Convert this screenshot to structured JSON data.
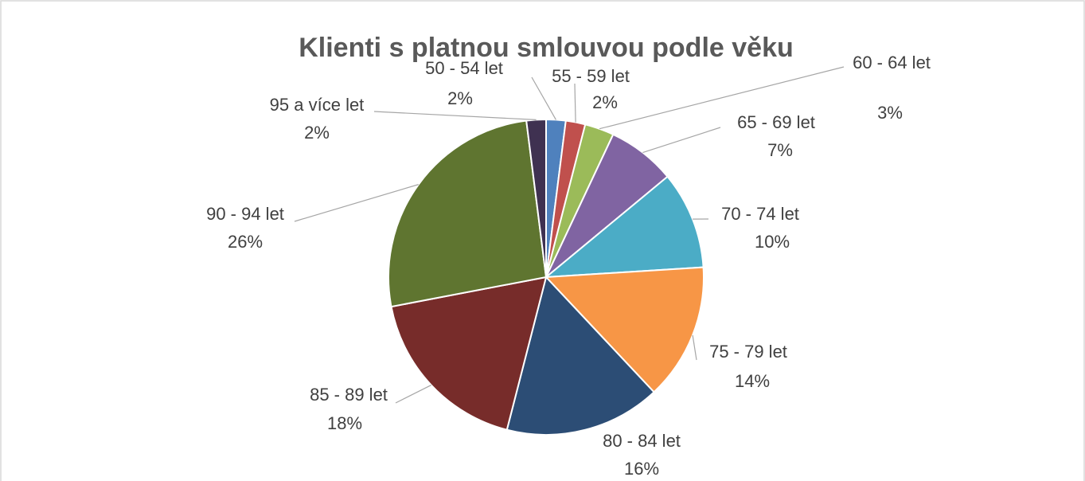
{
  "chart_data": {
    "type": "pie",
    "title": "Klienti s platnou smlouvou podle věku",
    "categories": [
      "50 - 54 let",
      "55 - 59 let",
      "60 - 64 let",
      "65 - 69 let",
      "70 - 74 let",
      "75 - 79 let",
      "80 - 84 let",
      "85 - 89 let",
      "90 - 94 let",
      "95 a více let"
    ],
    "values": [
      2,
      2,
      3,
      7,
      10,
      14,
      16,
      18,
      26,
      2
    ],
    "value_labels": [
      "2%",
      "2%",
      "3%",
      "7%",
      "10%",
      "14%",
      "16%",
      "18%",
      "26%",
      "2%"
    ],
    "colors": [
      "#4f81bd",
      "#c0504d",
      "#9bbb59",
      "#8064a2",
      "#4bacc6",
      "#f79646",
      "#2c4d75",
      "#772c2a",
      "#5f7530",
      "#3f3151"
    ]
  }
}
